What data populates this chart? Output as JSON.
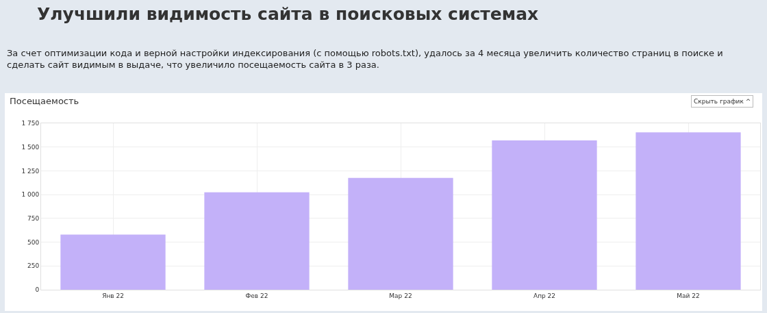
{
  "chart_data": {
    "type": "bar",
    "title": "Улучшили видимость сайта в поисковых системах",
    "subtitle": "За счет оптимизации кода и верной настройки индексирования (с помощью robots.txt), удалось за 4 месяца увеличить количество страниц в поиске и сделать сайт видимым в выдаче, что увеличило посещаемость сайта в 3 раза.",
    "ylabel": "Посещаемость",
    "annotations": [
      "Скрыть график ^"
    ],
    "categories": [
      "Янв 22",
      "Фев 22",
      "Мар 22",
      "Апр 22",
      "Май 22"
    ],
    "values": [
      580,
      1025,
      1175,
      1570,
      1655
    ],
    "color": "#c3b1f9",
    "ylim": [
      0,
      1750
    ],
    "yticks": [
      0,
      250,
      500,
      750,
      {
        "value": 1000,
        "label": "1 000"
      },
      {
        "value": 1250,
        "label": "1 250"
      },
      {
        "value": 1500,
        "label": "1 500"
      },
      {
        "value": 1750,
        "label": "1 750"
      }
    ],
    "grid": true,
    "legend": false
  }
}
